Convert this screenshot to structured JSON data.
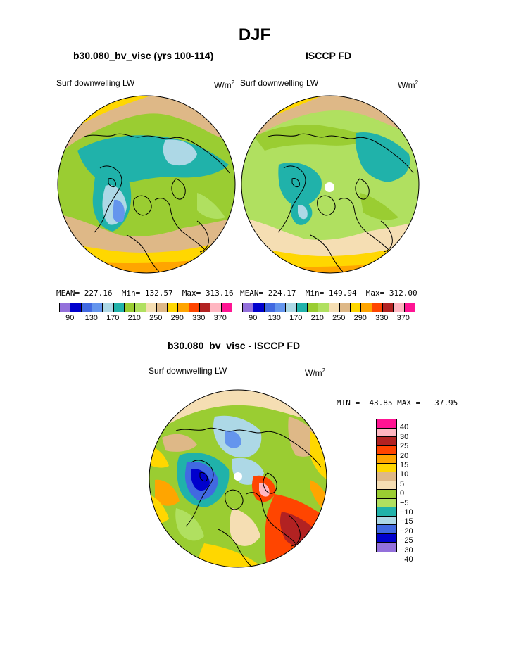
{
  "title": "DJF",
  "panels": [
    {
      "subtitle": "b30.080_bv_visc (yrs 100-114)",
      "field": "Surf downwelling LW",
      "units_base": "W/m",
      "units_sup": "2",
      "stats": "MEAN= 227.16  Min= 132.57  Max= 313.16"
    },
    {
      "subtitle": "ISCCP FD",
      "field": "Surf downwelling LW",
      "units_base": "W/m",
      "units_sup": "2",
      "stats": "MEAN= 224.17  Min= 149.94  Max= 312.00"
    }
  ],
  "diff_panel": {
    "subtitle": "b30.080_bv_visc - ISCCP FD",
    "field": "Surf downwelling LW",
    "units_base": "W/m",
    "units_sup": "2",
    "stats": "MIN = −43.85 MAX =   37.95"
  },
  "abs_colorbar": {
    "colors": [
      "#9370db",
      "#0000cd",
      "#4169e1",
      "#6495ed",
      "#add8e6",
      "#20b2aa",
      "#9acd32",
      "#b0e060",
      "#f5deb3",
      "#deb887",
      "#ffd700",
      "#ffa500",
      "#ff4500",
      "#b22222",
      "#ffb6c1",
      "#ff1493"
    ],
    "labels": [
      "90",
      "130",
      "170",
      "210",
      "250",
      "290",
      "330",
      "370"
    ]
  },
  "diff_colorbar": {
    "colors": [
      "#ff1493",
      "#ffb6c1",
      "#b22222",
      "#ff4500",
      "#ffa500",
      "#ffd700",
      "#deb887",
      "#f5deb3",
      "#9acd32",
      "#b0e060",
      "#20b2aa",
      "#add8e6",
      "#4169e1",
      "#0000cd",
      "#9370db"
    ],
    "labels": [
      "40",
      "30",
      "25",
      "20",
      "15",
      "10",
      "5",
      "0",
      "−5",
      "−10",
      "−15",
      "−20",
      "−25",
      "−30",
      "−40"
    ]
  }
}
